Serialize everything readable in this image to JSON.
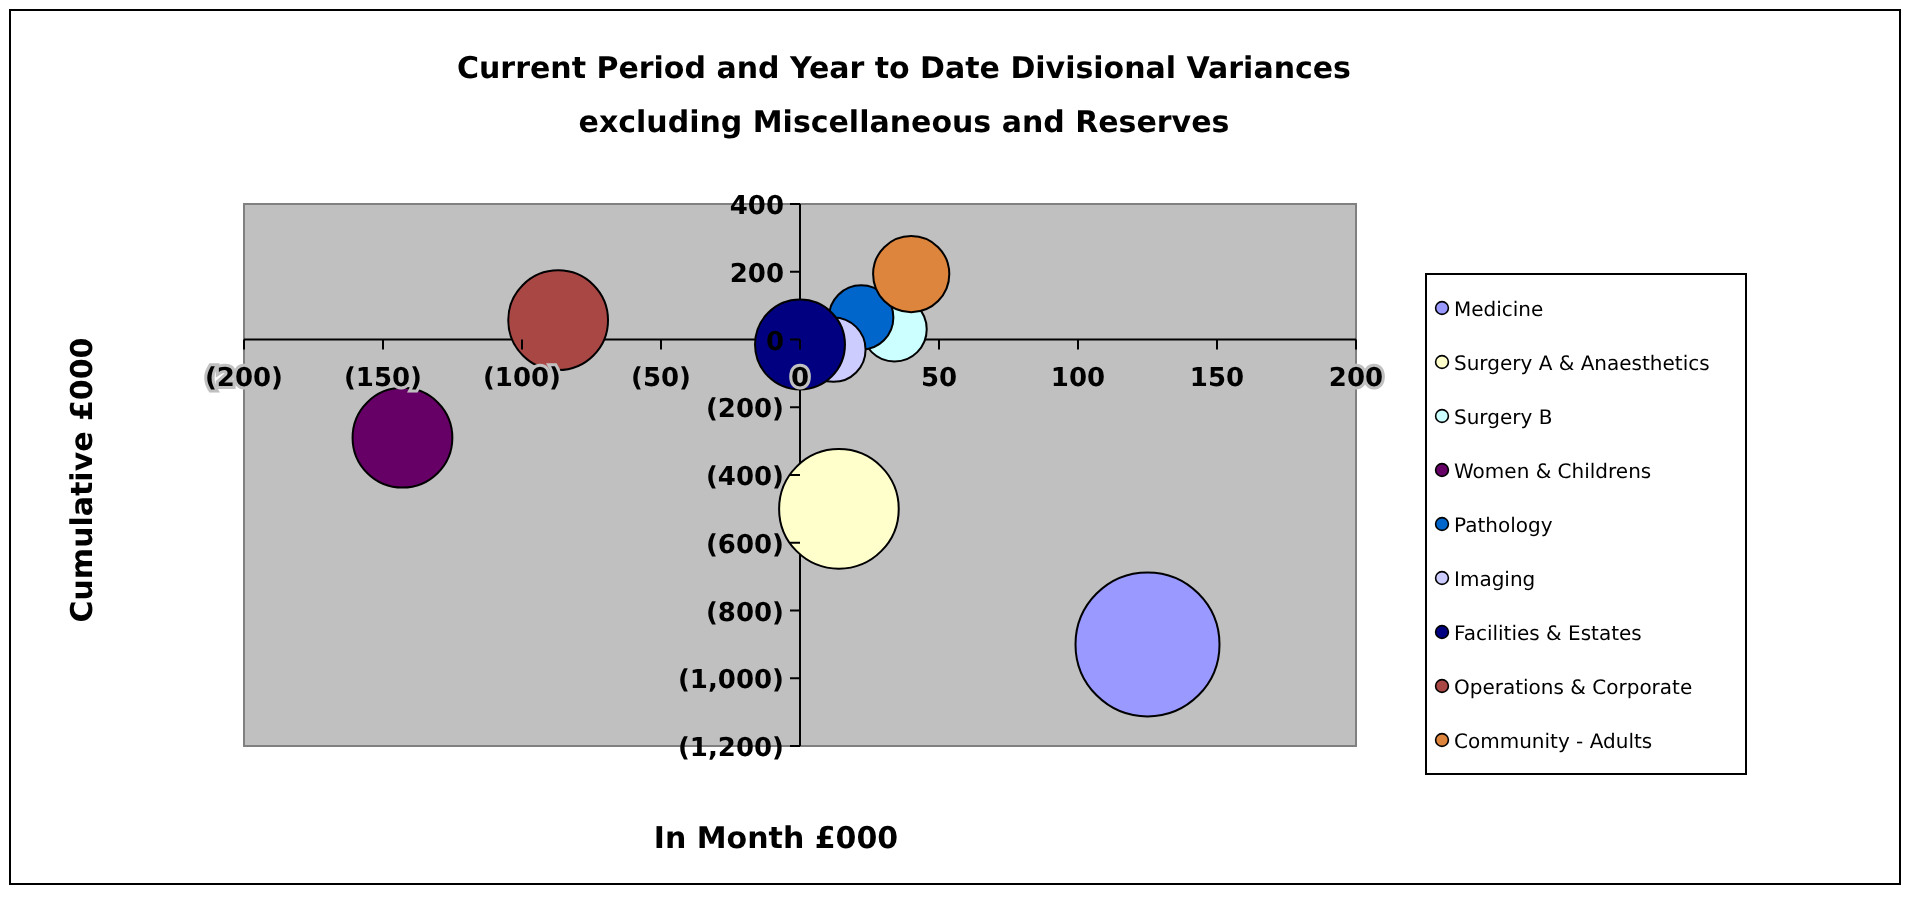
{
  "chart_data": {
    "type": "bubble",
    "title": "Current Period and Year to Date  Divisional Variances",
    "subtitle": "excluding Miscellaneous and Reserves",
    "xlabel": "In Month £000",
    "ylabel": "Cumulative £000",
    "xlim": [
      -200,
      200
    ],
    "ylim": [
      -1200,
      400
    ],
    "xticks": [
      {
        "value": -200,
        "label": "(200)"
      },
      {
        "value": -150,
        "label": "(150)"
      },
      {
        "value": -100,
        "label": "(100)"
      },
      {
        "value": -50,
        "label": "(50)"
      },
      0,
      50,
      100,
      150,
      200
    ],
    "yticks": [
      {
        "value": -1200,
        "label": "(1,200)"
      },
      {
        "value": -1000,
        "label": "(1,000)"
      },
      {
        "value": -800,
        "label": "(800)"
      },
      {
        "value": -600,
        "label": "(600)"
      },
      {
        "value": -400,
        "label": "(400)"
      },
      {
        "value": -200,
        "label": "(200)"
      },
      0,
      200,
      400
    ],
    "grid": false,
    "legend": "right",
    "marker": "circle",
    "series": [
      {
        "name": "Medicine",
        "color": "#9999ff",
        "x": [
          125
        ],
        "values": [
          -900
        ],
        "sizes": [
          1
        ]
      },
      {
        "name": "Surgery A & Anaesthetics",
        "color": "#ffffcc",
        "x": [
          14
        ],
        "values": [
          -500
        ],
        "sizes": [
          0.69
        ]
      },
      {
        "name": "Surgery B",
        "color": "#ccffff",
        "x": [
          34
        ],
        "values": [
          30
        ],
        "sizes": [
          0.2
        ]
      },
      {
        "name": "Women & Childrens",
        "color": "#660066",
        "x": [
          -143
        ],
        "values": [
          -290
        ],
        "sizes": [
          0.48
        ]
      },
      {
        "name": "Pathology",
        "color": "#0066cc",
        "x": [
          22
        ],
        "values": [
          65
        ],
        "sizes": [
          0.2
        ]
      },
      {
        "name": "Imaging",
        "color": "#ccccff",
        "x": [
          12
        ],
        "values": [
          -30
        ],
        "sizes": [
          0.2
        ]
      },
      {
        "name": "Facilities & Estates",
        "color": "#000080",
        "x": [
          0
        ],
        "values": [
          -15
        ],
        "sizes": [
          0.39
        ]
      },
      {
        "name": "Operations & Corporate",
        "color": "#a94745",
        "x": [
          -87
        ],
        "values": [
          57
        ],
        "sizes": [
          0.48
        ]
      },
      {
        "name": "Community - Adults",
        "color": "#dd843d",
        "x": [
          40
        ],
        "values": [
          193
        ],
        "sizes": [
          0.28
        ]
      }
    ]
  }
}
